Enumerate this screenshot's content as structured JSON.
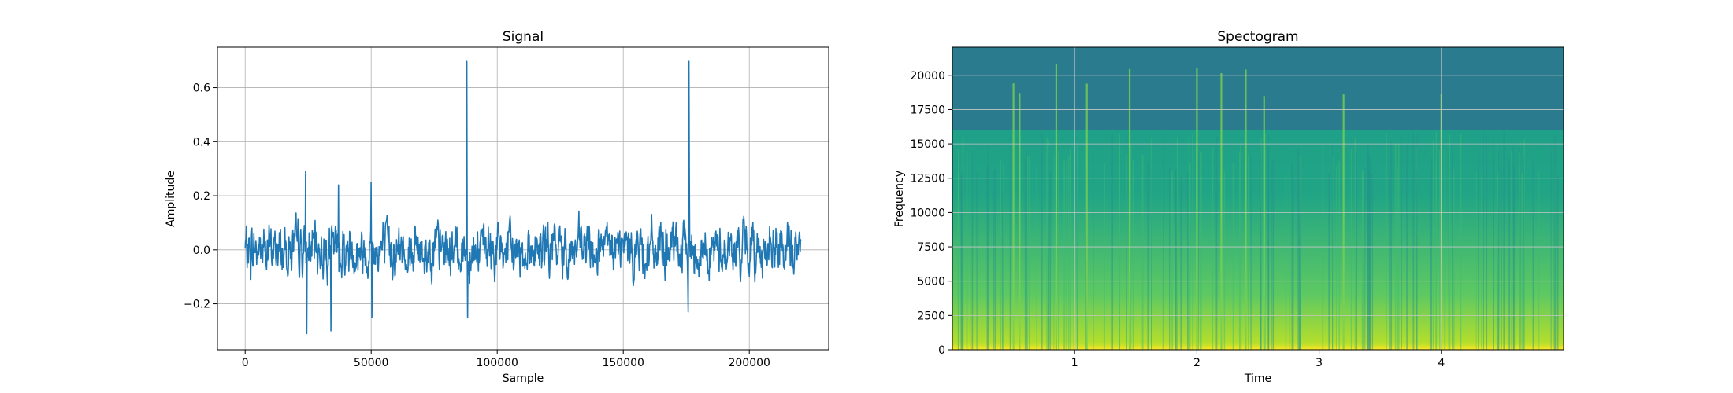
{
  "chart_data": [
    {
      "type": "line",
      "title": "Signal",
      "xlabel": "Sample",
      "ylabel": "Amplitude",
      "xlim": [
        -11000,
        231500
      ],
      "ylim": [
        -0.37,
        0.75
      ],
      "grid": true,
      "line_color": "#1f77b4",
      "x_ticks": [
        0,
        50000,
        100000,
        150000,
        200000
      ],
      "x_tick_labels": [
        "0",
        "50000",
        "100000",
        "150000",
        "200000"
      ],
      "y_ticks": [
        -0.2,
        0.0,
        0.2,
        0.4,
        0.6
      ],
      "y_tick_labels": [
        "−0.2",
        "0.0",
        "0.2",
        "0.4",
        "0.6"
      ],
      "x_max_sample": 220500,
      "noise_amplitude": 0.05,
      "spikes": [
        {
          "x": 24000,
          "y": 0.29
        },
        {
          "x": 24400,
          "y": -0.31
        },
        {
          "x": 34000,
          "y": -0.3
        },
        {
          "x": 37000,
          "y": 0.24
        },
        {
          "x": 50000,
          "y": 0.25
        },
        {
          "x": 50300,
          "y": -0.25
        },
        {
          "x": 88000,
          "y": 0.7
        },
        {
          "x": 88200,
          "y": -0.25
        },
        {
          "x": 176000,
          "y": 0.7
        },
        {
          "x": 176200,
          "y": 0.27
        },
        {
          "x": 175800,
          "y": -0.23
        }
      ]
    },
    {
      "type": "heatmap",
      "title": "Spectogram",
      "xlabel": "Time",
      "ylabel": "Frequency",
      "xlim": [
        0.0,
        5.0
      ],
      "ylim": [
        0,
        22050
      ],
      "grid": true,
      "colormap": "viridis",
      "x_ticks": [
        1,
        2,
        3,
        4
      ],
      "x_tick_labels": [
        "1",
        "2",
        "3",
        "4"
      ],
      "y_ticks": [
        0,
        2500,
        5000,
        7500,
        10000,
        12500,
        15000,
        17500,
        20000
      ],
      "y_tick_labels": [
        "0",
        "2500",
        "5000",
        "7500",
        "10000",
        "12500",
        "15000",
        "17500",
        "20000"
      ],
      "cutoff_frequency": 16000,
      "bright_times": [
        0.5,
        0.55,
        0.85,
        1.1,
        1.45,
        2.0,
        2.2,
        2.4,
        2.55,
        3.2,
        4.0
      ],
      "colors": {
        "low": "#2a7b8e",
        "mid": "#21a585",
        "high": "#b5de2b",
        "top": "#fde725"
      }
    }
  ]
}
